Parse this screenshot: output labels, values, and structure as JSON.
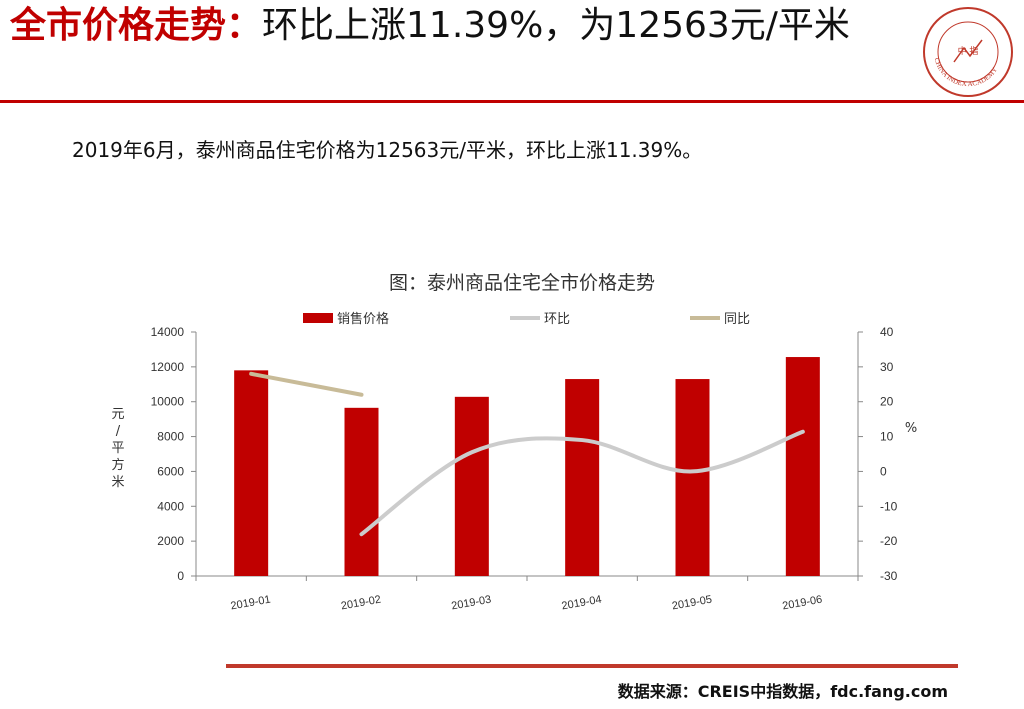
{
  "header": {
    "title_lead": "全市价格走势：",
    "title_rest": "环比上涨11.39%，为12563元/平米",
    "logo_label": "中 指",
    "logo_ring_text": "CHINA INDEX ACADEMY"
  },
  "summary": "2019年6月，泰州商品住宅价格为12563元/平米，环比上涨11.39%。",
  "footer": {
    "source": "数据来源：CREIS中指数据，fdc.fang.com"
  },
  "colors": {
    "accent": "#c00000",
    "bar": "#c00000",
    "mom_line": "#cccccc",
    "yoy_line": "#c8bb98"
  },
  "chart_data": {
    "type": "bar",
    "title": "图：泰州商品住宅全市价格走势",
    "categories": [
      "2019-01",
      "2019-02",
      "2019-03",
      "2019-04",
      "2019-05",
      "2019-06"
    ],
    "ylabel": "元/平方米",
    "ylim": [
      0,
      14000
    ],
    "yticks": [
      0,
      2000,
      4000,
      6000,
      8000,
      10000,
      12000,
      14000
    ],
    "y2label": "%",
    "y2lim": [
      -30,
      40
    ],
    "y2ticks": [
      -30,
      -20,
      -10,
      0,
      10,
      20,
      30,
      40
    ],
    "legend_position": "top",
    "grid": false,
    "series": [
      {
        "name": "销售价格",
        "type": "bar",
        "axis": "left",
        "values": [
          11800,
          9650,
          10280,
          11300,
          11300,
          12563
        ]
      },
      {
        "name": "环比",
        "type": "line",
        "axis": "right",
        "smooth": true,
        "values": [
          null,
          -18,
          5.5,
          9,
          0,
          11.39
        ]
      },
      {
        "name": "同比",
        "type": "line",
        "axis": "right",
        "values": [
          28,
          22,
          null,
          null,
          null,
          null
        ]
      }
    ]
  }
}
